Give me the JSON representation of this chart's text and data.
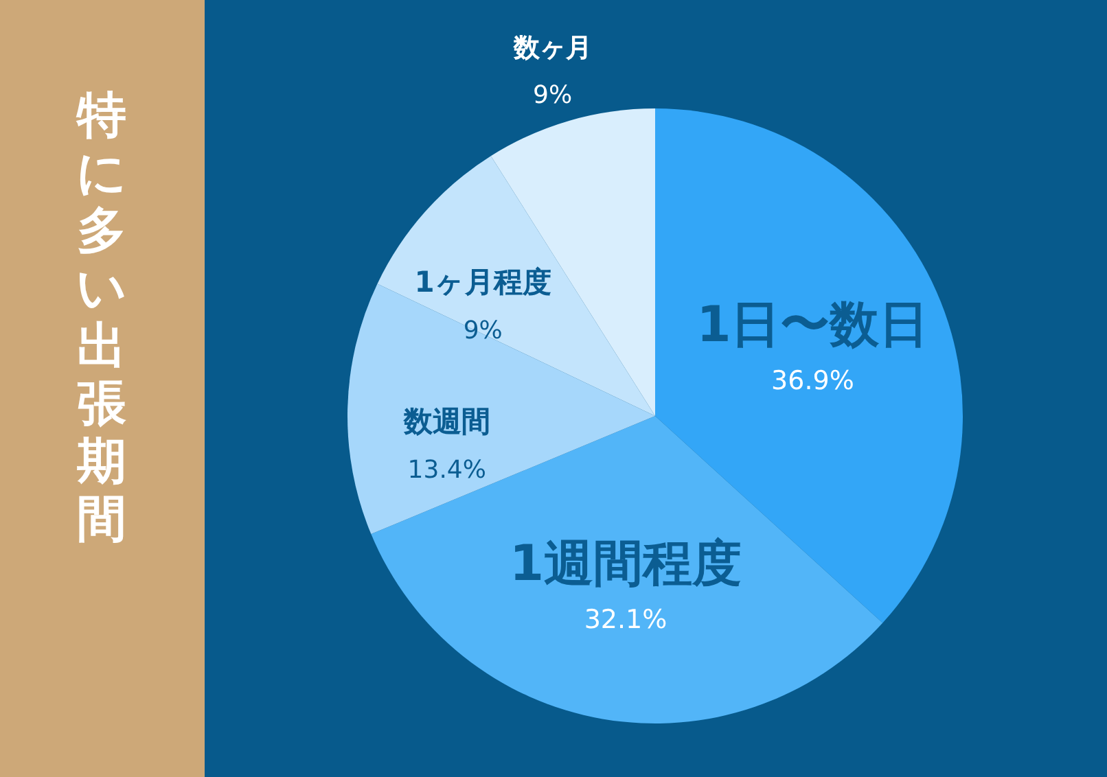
{
  "chart_data": {
    "type": "pie",
    "title": "特に多い出張期間",
    "categories": [
      "1日〜数日",
      "1週間程度",
      "数週間",
      "1ヶ月程度",
      "数ヶ月"
    ],
    "values": [
      36.9,
      32.1,
      13.4,
      9,
      9
    ],
    "colors": [
      "#33a6f7",
      "#52b5f8",
      "#a6d7fb",
      "#c3e4fc",
      "#d9eefd"
    ],
    "value_labels": [
      "36.9%",
      "32.1%",
      "13.4%",
      "9%",
      "9%"
    ],
    "legend": false
  }
}
